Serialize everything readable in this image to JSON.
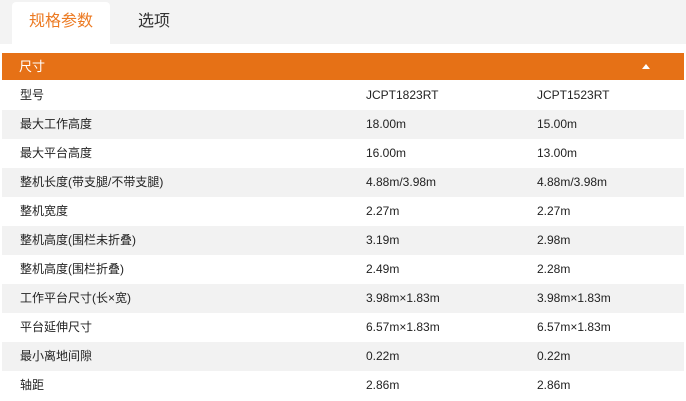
{
  "tabs": [
    {
      "label": "规格参数",
      "active": true
    },
    {
      "label": "选项",
      "active": false
    }
  ],
  "section": {
    "title": "尺寸",
    "icon": "caret-up-icon",
    "color": "#e67116"
  },
  "accent": "#ec7a22",
  "rows": [
    [
      "型号",
      "JCPT1823RT",
      "JCPT1523RT"
    ],
    [
      "最大工作高度",
      "18.00m",
      "15.00m"
    ],
    [
      "最大平台高度",
      "16.00m",
      "13.00m"
    ],
    [
      "整机长度(带支腿/不带支腿)",
      "4.88m/3.98m",
      "4.88m/3.98m"
    ],
    [
      "整机宽度",
      "2.27m",
      "2.27m"
    ],
    [
      "整机高度(围栏未折叠)",
      "3.19m",
      "2.98m"
    ],
    [
      "整机高度(围栏折叠)",
      "2.49m",
      "2.28m"
    ],
    [
      "工作平台尺寸(长×宽)",
      "3.98m×1.83m",
      "3.98m×1.83m"
    ],
    [
      "平台延伸尺寸",
      "6.57m×1.83m",
      "6.57m×1.83m"
    ],
    [
      "最小离地间隙",
      "0.22m",
      "0.22m"
    ],
    [
      "轴距",
      "2.86m",
      "2.86m"
    ]
  ]
}
